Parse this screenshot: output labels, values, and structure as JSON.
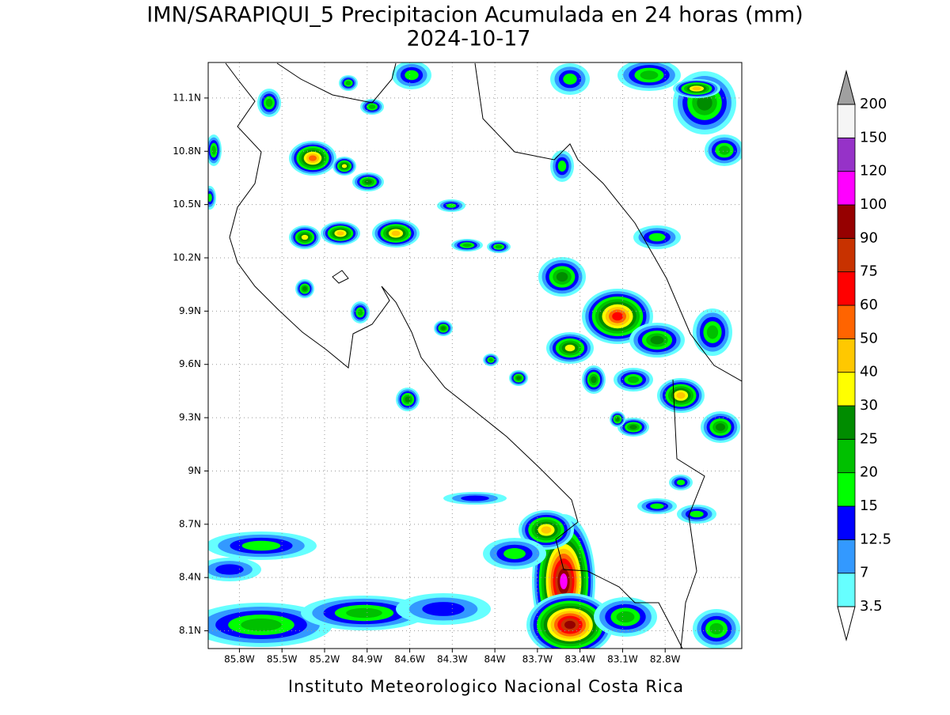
{
  "map": {
    "title": "IMN/SARAPIQUI_5 Precipitacion Acumulada en 24 horas (mm)",
    "subtitle": "2024-10-17",
    "footer": "Instituto Meteorologico Nacional Costa Rica",
    "xlim": [
      -86.02,
      -82.26
    ],
    "ylim": [
      8.0,
      11.3
    ],
    "xticks": [
      {
        "value": -85.8,
        "label": "85.8W"
      },
      {
        "value": -85.5,
        "label": "85.5W"
      },
      {
        "value": -85.2,
        "label": "85.2W"
      },
      {
        "value": -84.9,
        "label": "84.9W"
      },
      {
        "value": -84.6,
        "label": "84.6W"
      },
      {
        "value": -84.3,
        "label": "84.3W"
      },
      {
        "value": -84.0,
        "label": "84W"
      },
      {
        "value": -83.7,
        "label": "83.7W"
      },
      {
        "value": -83.4,
        "label": "83.4W"
      },
      {
        "value": -83.1,
        "label": "83.1W"
      },
      {
        "value": -82.8,
        "label": "82.8W"
      }
    ],
    "yticks": [
      {
        "value": 8.1,
        "label": "8.1N"
      },
      {
        "value": 8.4,
        "label": "8.4N"
      },
      {
        "value": 8.7,
        "label": "8.7N"
      },
      {
        "value": 9.0,
        "label": "9N"
      },
      {
        "value": 9.3,
        "label": "9.3N"
      },
      {
        "value": 9.6,
        "label": "9.6N"
      },
      {
        "value": 9.9,
        "label": "9.9N"
      },
      {
        "value": 10.2,
        "label": "10.2N"
      },
      {
        "value": 10.5,
        "label": "10.5N"
      },
      {
        "value": 10.8,
        "label": "10.8N"
      },
      {
        "value": 11.1,
        "label": "11.1N"
      }
    ],
    "grid": true,
    "colorbar": {
      "levels": [
        3.5,
        7,
        12.5,
        15,
        20,
        25,
        30,
        40,
        50,
        60,
        75,
        90,
        100,
        120,
        150,
        200
      ],
      "colors": [
        "#66ffff",
        "#3399ff",
        "#0000ff",
        "#00ff00",
        "#00c000",
        "#008c00",
        "#ffff00",
        "#ffc800",
        "#ff6400",
        "#ff0000",
        "#c83200",
        "#960000",
        "#ff00ff",
        "#9632c8",
        "#f5f5f5"
      ],
      "under_color": "#ffffff",
      "over_color": "#a0a0a0"
    }
  }
}
